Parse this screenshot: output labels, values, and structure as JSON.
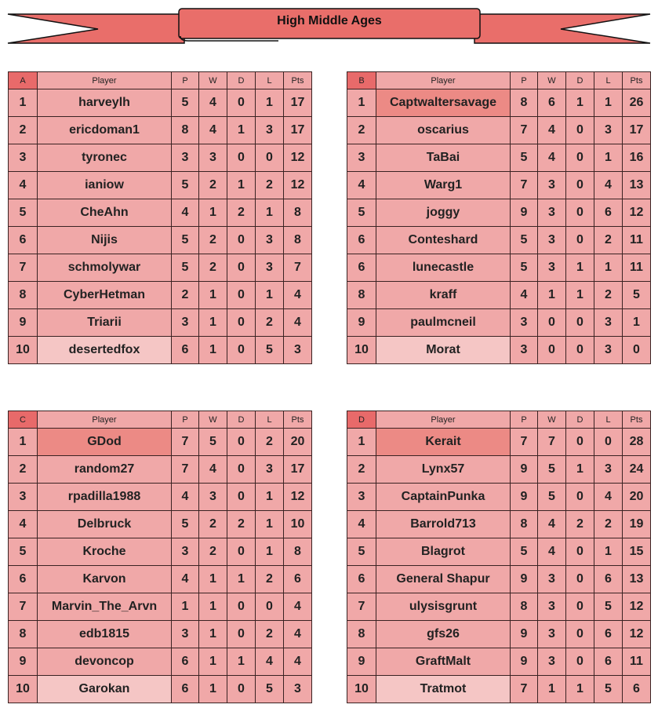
{
  "title": "High Middle Ages",
  "colors": {
    "banner": "#e96e6a",
    "header_letter": "#e86a6a",
    "cell": "#f0a8a8",
    "leader": "#ec8a85",
    "last": "#f5c6c5"
  },
  "headers": [
    "Player",
    "P",
    "W",
    "D",
    "L",
    "Pts"
  ],
  "groups": [
    {
      "name": "A",
      "leader_highlight": false,
      "rows": [
        [
          "1",
          "harveylh",
          "5",
          "4",
          "0",
          "1",
          "17"
        ],
        [
          "2",
          "ericdoman1",
          "8",
          "4",
          "1",
          "3",
          "17"
        ],
        [
          "3",
          "tyronec",
          "3",
          "3",
          "0",
          "0",
          "12"
        ],
        [
          "4",
          "ianiow",
          "5",
          "2",
          "1",
          "2",
          "12"
        ],
        [
          "5",
          "CheAhn",
          "4",
          "1",
          "2",
          "1",
          "8"
        ],
        [
          "6",
          "Nijis",
          "5",
          "2",
          "0",
          "3",
          "8"
        ],
        [
          "7",
          "schmolywar",
          "5",
          "2",
          "0",
          "3",
          "7"
        ],
        [
          "8",
          "CyberHetman",
          "2",
          "1",
          "0",
          "1",
          "4"
        ],
        [
          "9",
          "Triarii",
          "3",
          "1",
          "0",
          "2",
          "4"
        ],
        [
          "10",
          "desertedfox",
          "6",
          "1",
          "0",
          "5",
          "3"
        ]
      ]
    },
    {
      "name": "B",
      "leader_highlight": true,
      "rows": [
        [
          "1",
          "Captwaltersavage",
          "8",
          "6",
          "1",
          "1",
          "26"
        ],
        [
          "2",
          "oscarius",
          "7",
          "4",
          "0",
          "3",
          "17"
        ],
        [
          "3",
          "TaBai",
          "5",
          "4",
          "0",
          "1",
          "16"
        ],
        [
          "4",
          "Warg1",
          "7",
          "3",
          "0",
          "4",
          "13"
        ],
        [
          "5",
          "joggy",
          "9",
          "3",
          "0",
          "6",
          "12"
        ],
        [
          "6",
          "Conteshard",
          "5",
          "3",
          "0",
          "2",
          "11"
        ],
        [
          "6",
          "lunecastle",
          "5",
          "3",
          "1",
          "1",
          "11"
        ],
        [
          "8",
          "kraff",
          "4",
          "1",
          "1",
          "2",
          "5"
        ],
        [
          "9",
          "paulmcneil",
          "3",
          "0",
          "0",
          "3",
          "1"
        ],
        [
          "10",
          "Morat",
          "3",
          "0",
          "0",
          "3",
          "0"
        ]
      ]
    },
    {
      "name": "C",
      "leader_highlight": true,
      "rows": [
        [
          "1",
          "GDod",
          "7",
          "5",
          "0",
          "2",
          "20"
        ],
        [
          "2",
          "random27",
          "7",
          "4",
          "0",
          "3",
          "17"
        ],
        [
          "3",
          "rpadilla1988",
          "4",
          "3",
          "0",
          "1",
          "12"
        ],
        [
          "4",
          "Delbruck",
          "5",
          "2",
          "2",
          "1",
          "10"
        ],
        [
          "5",
          "Kroche",
          "3",
          "2",
          "0",
          "1",
          "8"
        ],
        [
          "6",
          "Karvon",
          "4",
          "1",
          "1",
          "2",
          "6"
        ],
        [
          "7",
          "Marvin_The_Arvn",
          "1",
          "1",
          "0",
          "0",
          "4"
        ],
        [
          "8",
          "edb1815",
          "3",
          "1",
          "0",
          "2",
          "4"
        ],
        [
          "9",
          "devoncop",
          "6",
          "1",
          "1",
          "4",
          "4"
        ],
        [
          "10",
          "Garokan",
          "6",
          "1",
          "0",
          "5",
          "3"
        ]
      ]
    },
    {
      "name": "D",
      "leader_highlight": true,
      "rows": [
        [
          "1",
          "Kerait",
          "7",
          "7",
          "0",
          "0",
          "28"
        ],
        [
          "2",
          "Lynx57",
          "9",
          "5",
          "1",
          "3",
          "24"
        ],
        [
          "3",
          "CaptainPunka",
          "9",
          "5",
          "0",
          "4",
          "20"
        ],
        [
          "4",
          "Barrold713",
          "8",
          "4",
          "2",
          "2",
          "19"
        ],
        [
          "5",
          "Blagrot",
          "5",
          "4",
          "0",
          "1",
          "15"
        ],
        [
          "6",
          "General Shapur",
          "9",
          "3",
          "0",
          "6",
          "13"
        ],
        [
          "7",
          "ulysisgrunt",
          "8",
          "3",
          "0",
          "5",
          "12"
        ],
        [
          "8",
          "gfs26",
          "9",
          "3",
          "0",
          "6",
          "12"
        ],
        [
          "9",
          "GraftMalt",
          "9",
          "3",
          "0",
          "6",
          "11"
        ],
        [
          "10",
          "Tratmot",
          "7",
          "1",
          "1",
          "5",
          "6"
        ]
      ]
    }
  ]
}
